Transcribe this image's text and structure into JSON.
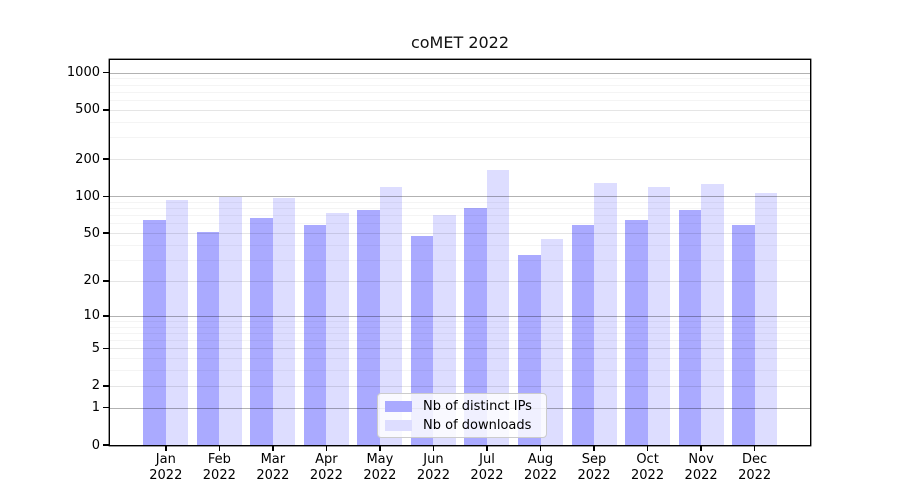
{
  "chart_data": {
    "type": "bar",
    "title": "coMET 2022",
    "categories": [
      "Jan",
      "Feb",
      "Mar",
      "Apr",
      "May",
      "Jun",
      "Jul",
      "Aug",
      "Sep",
      "Oct",
      "Nov",
      "Dec"
    ],
    "category_year": "2022",
    "series": [
      {
        "name": "Nb of distinct IPs",
        "color": "#aaaaff",
        "values": [
          64,
          51,
          67,
          58,
          77,
          47,
          81,
          33,
          58,
          64,
          78,
          58
        ]
      },
      {
        "name": "Nb of downloads",
        "color": "#ddddff",
        "values": [
          93,
          98,
          97,
          73,
          120,
          70,
          163,
          45,
          128,
          118,
          126,
          106
        ]
      }
    ],
    "xlabel": "",
    "ylabel": "",
    "y_scale": "log1p",
    "y_ticks": [
      0,
      1,
      2,
      5,
      10,
      20,
      50,
      100,
      200,
      500,
      1000
    ],
    "ylim": [
      0,
      1265
    ],
    "grid": "on",
    "legend_position": "lower center"
  }
}
